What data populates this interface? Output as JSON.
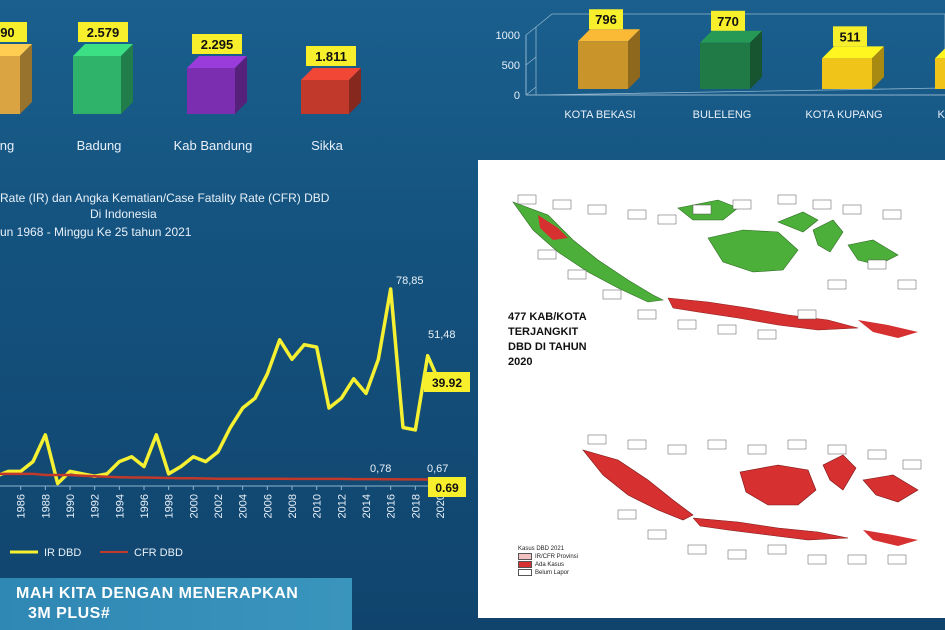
{
  "top_left_bars": {
    "labels": [
      "...ung",
      "Badung",
      "Kab Bandung",
      "Sikka"
    ],
    "values": [
      "...90",
      "2.579",
      "2.295",
      "1.811"
    ],
    "colors": [
      "#d9a441",
      "#2fb36a",
      "#7b2fb0",
      "#c0392b"
    ]
  },
  "top_right_bars": {
    "ticks": [
      "1000",
      "500",
      "0"
    ],
    "labels": [
      "KOTA BEKASI",
      "BULELENG",
      "KOTA KUPANG",
      "KARA..."
    ],
    "values": [
      "796",
      "770",
      "511",
      ""
    ],
    "colors": [
      "#c9952a",
      "#1f7a45",
      "#f0c419",
      "#f0c419"
    ]
  },
  "line_chart_title": {
    "line1": "Rate (IR) dan Angka Kematian/Case Fatality Rate (CFR) DBD",
    "line2": "Di Indonesia",
    "line3": "un 1968 -  Minggu Ke 25 tahun  2021"
  },
  "chart_data": {
    "type": "line",
    "x": [
      1984,
      1985,
      1986,
      1987,
      1988,
      1989,
      1990,
      1991,
      1992,
      1993,
      1994,
      1995,
      1996,
      1997,
      1998,
      1999,
      2000,
      2001,
      2002,
      2003,
      2004,
      2005,
      2006,
      2007,
      2008,
      2009,
      2010,
      2011,
      2012,
      2013,
      2014,
      2015,
      2016,
      2017,
      2018,
      2019,
      2020
    ],
    "x_tick_labels": [
      "1986",
      "1988",
      "1990",
      "1992",
      "1994",
      "1996",
      "1998",
      "2000",
      "2002",
      "2004",
      "2006",
      "2008",
      "2010",
      "2012",
      "2014",
      "2016",
      "2018",
      "2020"
    ],
    "series": [
      {
        "name": "IR DBD",
        "color": "#f5f032",
        "values": [
          2,
          4,
          4,
          8,
          19,
          -1,
          4,
          3,
          2,
          3,
          8,
          10,
          6,
          19,
          3,
          6,
          10,
          8,
          12,
          22,
          30,
          34,
          44,
          58,
          50,
          56,
          55,
          30,
          34,
          42,
          36,
          50,
          78.85,
          22,
          21,
          51.48,
          39.92
        ]
      },
      {
        "name": "CFR DBD",
        "color": "#c0392b",
        "values": [
          3,
          3,
          3,
          3,
          2.5,
          2.5,
          2.5,
          2.2,
          2,
          1.8,
          1.6,
          1.5,
          1.5,
          1.4,
          1.3,
          1.2,
          1.2,
          1.1,
          1,
          1,
          1,
          1,
          1,
          1,
          0.9,
          0.9,
          0.9,
          0.9,
          0.9,
          0.8,
          0.8,
          0.8,
          0.78,
          0.7,
          0.7,
          0.67,
          0.69
        ]
      }
    ],
    "annotations": [
      "78,85",
      "51,48",
      "39.92",
      "0,78",
      "0,67",
      "0.69"
    ],
    "ylim": [
      -2,
      85
    ]
  },
  "legend": {
    "ir": "IR DBD",
    "cfr": "CFR DBD"
  },
  "map": {
    "caption1": "477 KAB/KOTA",
    "caption2": "TERJANGKIT",
    "caption3": "DBD DI TAHUN",
    "caption4": "2020",
    "legend_title": "Kasus DBD 2021",
    "legend_1": "IR/CFR Provinsi",
    "legend_2": "Ada Kasus",
    "legend_3": "Belum Lapor"
  },
  "banner": {
    "line1": "MAH KITA DENGAN MENERAPKAN",
    "line2": "3M PLUS#"
  }
}
